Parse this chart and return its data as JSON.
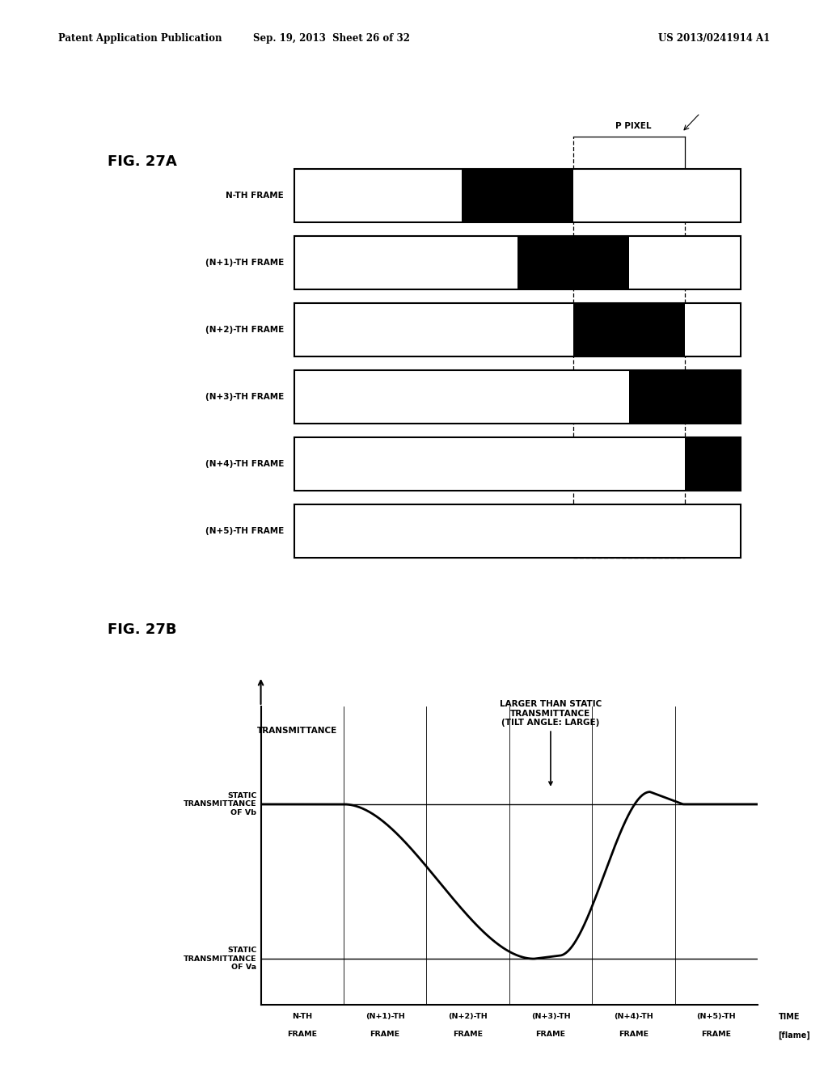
{
  "header_left": "Patent Application Publication",
  "header_center": "Sep. 19, 2013  Sheet 26 of 32",
  "header_right": "US 2013/0241914 A1",
  "fig_a_label": "FIG. 27A",
  "fig_b_label": "FIG. 27B",
  "frame_labels": [
    "N-TH FRAME",
    "(N+1)-TH FRAME",
    "(N+2)-TH FRAME",
    "(N+3)-TH FRAME",
    "(N+4)-TH FRAME",
    "(N+5)-TH FRAME"
  ],
  "num_cols": 8,
  "black_cells": [
    [
      3,
      4
    ],
    [
      4,
      5
    ],
    [
      5,
      6
    ],
    [
      6,
      7
    ],
    [
      7
    ],
    []
  ],
  "p_pixel_label": "P PIXEL",
  "transmittance_label": "TRANSMITTANCE",
  "static_vb_label": "STATIC\nTRANSMITTANCE\nOF Vb",
  "static_va_label": "STATIC\nTRANSMITTANCE\nOF Va",
  "time_label": "TIME\n[flame]",
  "annotation_label": "LARGER THAN STATIC\nTRANSMITTANCE\n(TILT ANGLE: LARGE)",
  "x_tick_labels_line1": [
    "N-TH",
    "(N+1)-TH",
    "(N+2)-TH",
    "(N+3)-TH",
    "(N+4)-TH",
    "(N+5)-TH"
  ],
  "x_tick_labels_line2": [
    "FRAME",
    "FRAME",
    "FRAME",
    "FRAME",
    "FRAME",
    "FRAME"
  ],
  "background_color": "#ffffff"
}
